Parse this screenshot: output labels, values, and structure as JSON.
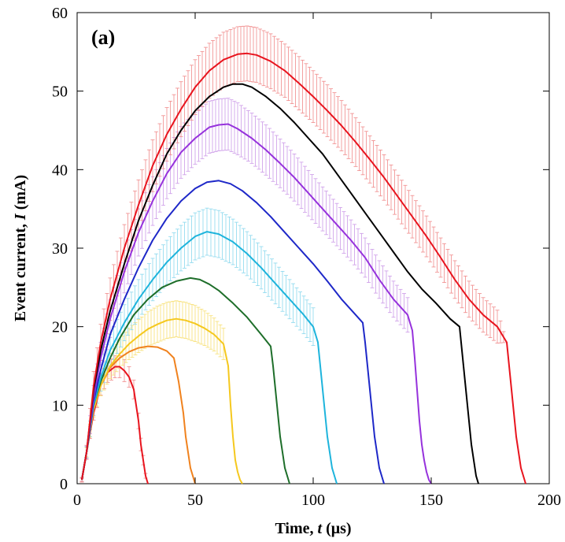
{
  "chart_data": {
    "type": "line",
    "title": "",
    "panel_label": "(a)",
    "xlabel": {
      "prefix": "Time, ",
      "symbol": "t",
      "suffix": " (μs)"
    },
    "ylabel": {
      "prefix": "Event current, ",
      "symbol": "I",
      "suffix": " (mA)"
    },
    "xlim": [
      0,
      200
    ],
    "ylim": [
      0,
      60
    ],
    "xticks": [
      0,
      50,
      100,
      150,
      200
    ],
    "yticks": [
      0,
      10,
      20,
      30,
      40,
      50,
      60
    ],
    "grid": false,
    "legend": "none",
    "series": [
      {
        "color": "#e8141e",
        "x": [
          2,
          4,
          7,
          10,
          13,
          16,
          18,
          20,
          22,
          24,
          26,
          27,
          28,
          29,
          30
        ],
        "y": [
          0.5,
          4,
          9,
          12.5,
          14.2,
          14.9,
          14.9,
          14.4,
          13.6,
          12,
          8,
          5,
          3,
          1,
          0
        ],
        "error_bar": {
          "color": "#f08a8a",
          "half_width": [
            0.3,
            0.6,
            0.9,
            1.2,
            1.3,
            1.4,
            1.4,
            1.4,
            1.3,
            1.2,
            1,
            0.8,
            0.6,
            0.3,
            0
          ]
        }
      },
      {
        "color": "#f0821e",
        "x": [
          2,
          4,
          7,
          10,
          14,
          18,
          22,
          26,
          30,
          34,
          38,
          41,
          43,
          45,
          46,
          47,
          48,
          49,
          50
        ],
        "y": [
          0.5,
          4,
          9.5,
          12.5,
          14.8,
          16,
          16.8,
          17.3,
          17.5,
          17.4,
          16.9,
          16,
          13,
          9,
          6,
          4,
          2,
          1,
          0
        ]
      },
      {
        "color": "#f5c81e",
        "x": [
          2,
          4,
          7,
          10,
          14,
          18,
          22,
          26,
          30,
          34,
          38,
          42,
          46,
          50,
          54,
          58,
          62,
          64,
          65,
          66,
          67,
          68,
          69,
          70
        ],
        "y": [
          0.5,
          4,
          9.5,
          12.5,
          15,
          16.5,
          17.8,
          18.8,
          19.7,
          20.3,
          20.8,
          21,
          20.8,
          20.4,
          19.8,
          19,
          17.8,
          15,
          10,
          6,
          3,
          1.5,
          0.5,
          0
        ],
        "error_bar": {
          "color": "#f7df70",
          "half_width": [
            0.2,
            0.6,
            1,
            1.3,
            1.6,
            1.8,
            2,
            2.1,
            2.2,
            2.3,
            2.3,
            2.3,
            2.3,
            2.3,
            2.2,
            2.1,
            2,
            0,
            0,
            0,
            0,
            0,
            0,
            0
          ]
        }
      },
      {
        "color": "#1e6e2a",
        "x": [
          2,
          4,
          7,
          10,
          14,
          18,
          24,
          30,
          36,
          42,
          48,
          52,
          56,
          60,
          66,
          72,
          78,
          82,
          83,
          84,
          85,
          86,
          87,
          88,
          89,
          90
        ],
        "y": [
          0.5,
          4,
          10,
          13,
          16,
          18.5,
          21.5,
          23.5,
          25,
          25.8,
          26.2,
          26,
          25.4,
          24.6,
          23,
          21.2,
          19,
          17.5,
          15,
          12,
          9,
          6,
          4,
          2,
          1,
          0
        ]
      },
      {
        "color": "#1eb4dc",
        "x": [
          2,
          4,
          7,
          10,
          14,
          20,
          26,
          32,
          38,
          44,
          50,
          55,
          60,
          66,
          72,
          78,
          84,
          90,
          96,
          100,
          102,
          103,
          104,
          105,
          106,
          107,
          108,
          109,
          110
        ],
        "y": [
          0.5,
          4,
          10,
          13.5,
          17,
          20.5,
          23.5,
          26,
          28.2,
          30,
          31.5,
          32.1,
          31.8,
          30.8,
          29.3,
          27.5,
          25.5,
          23.5,
          21.5,
          20,
          18,
          15,
          12,
          9,
          6,
          4,
          2,
          1,
          0
        ],
        "error_bar": {
          "color": "#8ad8ee",
          "half_width": [
            0.2,
            0.7,
            1.3,
            1.7,
            2,
            2.3,
            2.5,
            2.7,
            2.8,
            2.9,
            3,
            3,
            3,
            2.9,
            2.8,
            2.7,
            2.6,
            2.5,
            2.4,
            2.4,
            0,
            0,
            0,
            0,
            0,
            0,
            0,
            0,
            0
          ]
        }
      },
      {
        "color": "#1e28c8",
        "x": [
          2,
          4,
          7,
          10,
          14,
          20,
          26,
          32,
          38,
          44,
          50,
          55,
          60,
          65,
          70,
          76,
          82,
          88,
          94,
          100,
          106,
          112,
          118,
          121,
          122,
          123,
          124,
          125,
          126,
          127,
          128,
          129,
          130
        ],
        "y": [
          0.5,
          4,
          10.5,
          14.5,
          19,
          23.5,
          27.5,
          31,
          33.8,
          36,
          37.6,
          38.4,
          38.6,
          38.2,
          37.3,
          35.8,
          34,
          32,
          30,
          28,
          25.8,
          23.5,
          21.5,
          20.5,
          18,
          15,
          12,
          9,
          6,
          4,
          2,
          1,
          0
        ]
      },
      {
        "color": "#9632dc",
        "x": [
          2,
          4,
          7,
          10,
          14,
          20,
          26,
          32,
          38,
          44,
          50,
          56,
          60,
          64,
          68,
          74,
          80,
          86,
          92,
          98,
          104,
          110,
          116,
          122,
          128,
          134,
          140,
          142,
          143,
          144,
          145,
          146,
          147,
          148,
          149,
          150
        ],
        "y": [
          0.5,
          4,
          11,
          16,
          21,
          27,
          32,
          36,
          39.5,
          42.2,
          44,
          45.4,
          45.7,
          45.8,
          45.2,
          44,
          42.5,
          40.8,
          39,
          37,
          35,
          33,
          31,
          28.8,
          26,
          23.5,
          21.5,
          19.5,
          16,
          12,
          8,
          5,
          3,
          1.5,
          0.5,
          0
        ],
        "error_bar": {
          "color": "#cc9ae8",
          "half_width": [
            0.2,
            0.8,
            1.5,
            2,
            2.4,
            2.7,
            3,
            3.1,
            3.2,
            3.3,
            3.3,
            3.3,
            3.3,
            3.3,
            3.3,
            3.2,
            3.2,
            3.1,
            3,
            2.9,
            2.8,
            2.7,
            2.6,
            2.5,
            2.4,
            2.3,
            2.2,
            0,
            0,
            0,
            0,
            0,
            0,
            0,
            0,
            0
          ]
        }
      },
      {
        "color": "#000000",
        "x": [
          2,
          4,
          7,
          10,
          14,
          20,
          26,
          32,
          38,
          44,
          50,
          56,
          62,
          66,
          70,
          74,
          80,
          86,
          92,
          98,
          104,
          110,
          116,
          122,
          128,
          134,
          140,
          146,
          152,
          158,
          162,
          163,
          164,
          165,
          166,
          167,
          168,
          169,
          170
        ],
        "y": [
          0.5,
          4,
          12,
          17,
          22,
          28,
          33.5,
          38,
          42,
          45,
          47.5,
          49.3,
          50.5,
          50.9,
          50.9,
          50.5,
          49.3,
          47.8,
          46,
          44,
          42,
          39.5,
          37,
          34.5,
          32,
          29.5,
          27,
          24.8,
          23,
          21,
          20,
          17,
          14,
          11,
          8,
          5,
          3,
          1,
          0
        ]
      },
      {
        "color": "#e8141e",
        "x": [
          2,
          4,
          7,
          10,
          14,
          20,
          26,
          32,
          38,
          44,
          50,
          56,
          62,
          68,
          72,
          76,
          82,
          88,
          94,
          100,
          106,
          112,
          118,
          124,
          130,
          136,
          142,
          148,
          154,
          160,
          166,
          172,
          178,
          182,
          183,
          184,
          185,
          186,
          187,
          188,
          189,
          190
        ],
        "y": [
          0.5,
          4,
          12.5,
          18,
          23.5,
          30,
          35.5,
          40.5,
          44.5,
          47.7,
          50.5,
          52.6,
          54,
          54.7,
          54.8,
          54.6,
          53.8,
          52.6,
          51,
          49.3,
          47.5,
          45.6,
          43.5,
          41.3,
          39,
          36.5,
          34,
          31.5,
          28.8,
          26,
          23.5,
          21.5,
          20,
          18,
          15,
          12,
          9,
          6,
          4,
          2,
          1,
          0
        ],
        "error_bar": {
          "color": "#f08a8a",
          "half_width": [
            0.2,
            0.9,
            1.8,
            2.3,
            2.7,
            3,
            3.2,
            3.3,
            3.4,
            3.5,
            3.5,
            3.5,
            3.5,
            3.5,
            3.5,
            3.5,
            3.5,
            3.4,
            3.4,
            3.3,
            3.3,
            3.2,
            3.1,
            3,
            2.9,
            2.8,
            2.7,
            2.6,
            2.5,
            2.4,
            2.3,
            2.2,
            2.1,
            0,
            0,
            0,
            0,
            0,
            0,
            0,
            0,
            0
          ]
        }
      }
    ]
  }
}
